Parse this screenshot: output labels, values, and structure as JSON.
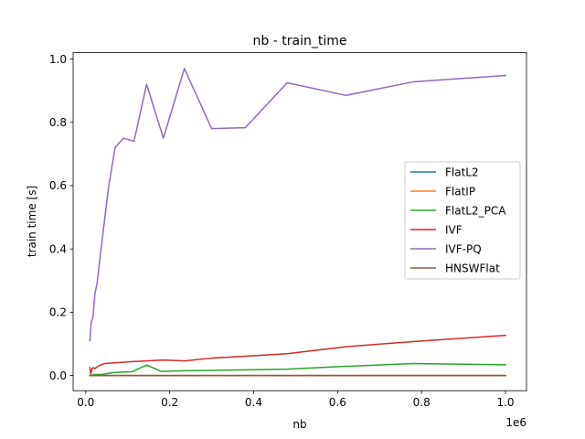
{
  "chart_data": {
    "type": "line",
    "title": "nb - train_time",
    "xlabel": "nb",
    "ylabel": "train time [s]",
    "x_offset_text": "1e6",
    "xlim": [
      -30000,
      1050000
    ],
    "ylim": [
      -0.048,
      1.02
    ],
    "x_ticks": [
      0,
      200000,
      400000,
      600000,
      800000,
      1000000
    ],
    "x_tick_labels": [
      "0.0",
      "0.2",
      "0.4",
      "0.6",
      "0.8",
      "1.0"
    ],
    "y_ticks": [
      0,
      0.2,
      0.4,
      0.6,
      0.8,
      1.0
    ],
    "y_tick_labels": [
      "0.0",
      "0.2",
      "0.4",
      "0.6",
      "0.8",
      "1.0"
    ],
    "grid": false,
    "legend_position": "center-right",
    "series": [
      {
        "name": "FlatL2",
        "color": "#1f77b4",
        "x": [
          10000,
          100000,
          300000,
          500000,
          800000,
          1000000
        ],
        "y": [
          0.0,
          0.0,
          0.0,
          0.0,
          0.0,
          0.0
        ]
      },
      {
        "name": "FlatIP",
        "color": "#ff7f0e",
        "x": [
          10000,
          100000,
          300000,
          500000,
          800000,
          1000000
        ],
        "y": [
          0.0,
          0.0,
          0.0,
          0.0,
          0.0,
          0.0
        ]
      },
      {
        "name": "FlatL2_PCA",
        "color": "#2ca02c",
        "x": [
          10000,
          20000,
          40000,
          70000,
          110000,
          145000,
          180000,
          235000,
          300000,
          380000,
          480000,
          620000,
          780000,
          1000000
        ],
        "y": [
          0.0,
          0.003,
          0.004,
          0.01,
          0.012,
          0.033,
          0.013,
          0.015,
          0.016,
          0.018,
          0.02,
          0.029,
          0.038,
          0.034
        ]
      },
      {
        "name": "IVF",
        "color": "#d62728",
        "x": [
          10000,
          12000,
          15000,
          18000,
          22000,
          30000,
          45000,
          70000,
          110000,
          145000,
          185000,
          235000,
          300000,
          380000,
          480000,
          620000,
          780000,
          1000000
        ],
        "y": [
          0.025,
          0.005,
          0.022,
          0.025,
          0.022,
          0.03,
          0.038,
          0.04,
          0.044,
          0.046,
          0.049,
          0.046,
          0.055,
          0.061,
          0.069,
          0.091,
          0.107,
          0.127
        ]
      },
      {
        "name": "IVF-PQ",
        "color": "#9467bd",
        "x": [
          10000,
          13000,
          17000,
          22000,
          27000,
          33000,
          42000,
          55000,
          70000,
          90000,
          115000,
          145000,
          185000,
          235000,
          300000,
          380000,
          480000,
          620000,
          780000,
          1000000
        ],
        "y": [
          0.11,
          0.17,
          0.18,
          0.26,
          0.29,
          0.36,
          0.46,
          0.6,
          0.72,
          0.75,
          0.74,
          0.92,
          0.75,
          0.97,
          0.78,
          0.783,
          0.925,
          0.885,
          0.928,
          0.948
        ]
      },
      {
        "name": "HNSWFlat",
        "color": "#8c564b",
        "x": [
          10000,
          100000,
          300000,
          500000,
          800000,
          1000000
        ],
        "y": [
          0.0,
          0.0,
          0.0,
          0.0,
          0.0,
          0.0
        ]
      }
    ]
  }
}
